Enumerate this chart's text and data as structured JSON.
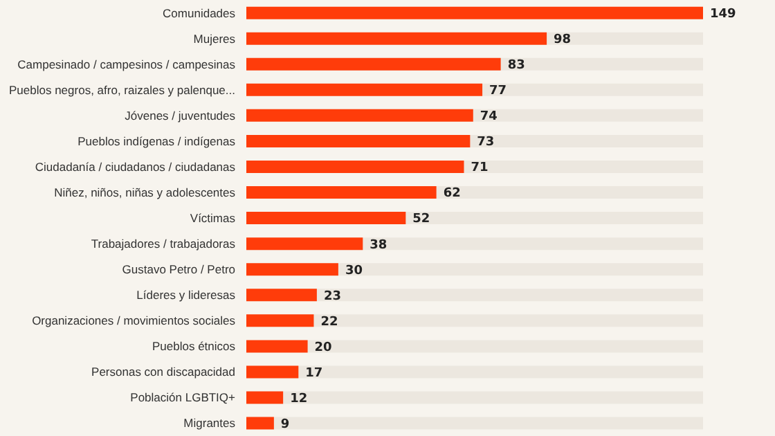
{
  "chart_data": {
    "type": "bar",
    "orientation": "horizontal",
    "categories": [
      "Comunidades",
      "Mujeres",
      "Campesinado / campesinos / campesinas",
      "Pueblos negros, afro, raizales y palenque...",
      "Jóvenes / juventudes",
      "Pueblos indígenas / indígenas",
      "Ciudadanía / ciudadanos / ciudadanas",
      "Niñez, niños, niñas y adolescentes",
      "Víctimas",
      "Trabajadores / trabajadoras",
      "Gustavo Petro / Petro",
      "Líderes y lideresas",
      "Organizaciones / movimientos sociales",
      "Pueblos étnicos",
      "Personas con discapacidad",
      "Población LGBTIQ+",
      "Migrantes"
    ],
    "values": [
      149,
      98,
      83,
      77,
      74,
      73,
      71,
      62,
      52,
      38,
      30,
      23,
      22,
      20,
      17,
      12,
      9
    ],
    "color": "#ff3c0a",
    "data_labels": true
  }
}
